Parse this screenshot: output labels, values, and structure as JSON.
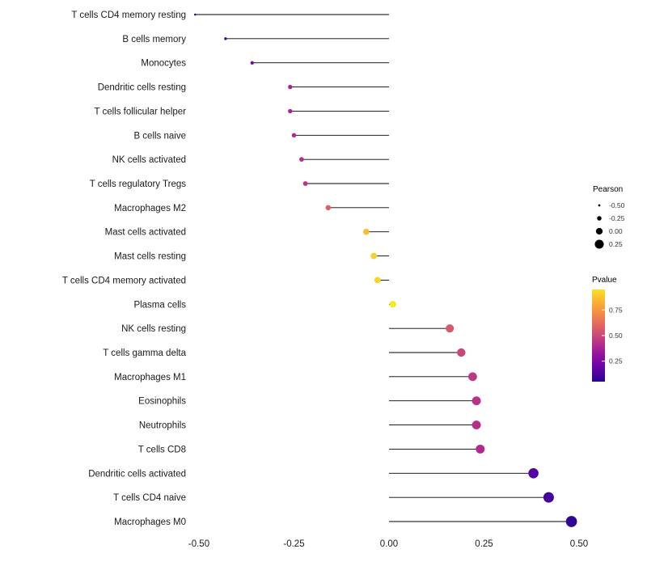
{
  "chart_data": {
    "type": "scatter",
    "variant": "lollipop",
    "title": "",
    "xlabel": "",
    "ylabel": "",
    "xlim": [
      -0.55,
      0.55
    ],
    "grid": false,
    "x_ticks": [
      {
        "value": -0.5,
        "label": "-0.50"
      },
      {
        "value": -0.25,
        "label": "-0.25"
      },
      {
        "value": 0.0,
        "label": "0.00"
      },
      {
        "value": 0.25,
        "label": "0.25"
      },
      {
        "value": 0.5,
        "label": "0.50"
      }
    ],
    "points": [
      {
        "label": "T cells CD4 memory resting",
        "pearson": -0.51,
        "pvalue": 0.08
      },
      {
        "label": "B cells memory",
        "pearson": -0.43,
        "pvalue": 0.13
      },
      {
        "label": "Monocytes",
        "pearson": -0.36,
        "pvalue": 0.22
      },
      {
        "label": "Dendritic cells resting",
        "pearson": -0.26,
        "pvalue": 0.38
      },
      {
        "label": "T cells follicular helper",
        "pearson": -0.26,
        "pvalue": 0.38
      },
      {
        "label": "B cells naive",
        "pearson": -0.25,
        "pvalue": 0.4
      },
      {
        "label": "NK cells activated",
        "pearson": -0.23,
        "pvalue": 0.42
      },
      {
        "label": "T cells regulatory  Tregs",
        "pearson": -0.22,
        "pvalue": 0.44
      },
      {
        "label": "Macrophages M2",
        "pearson": -0.16,
        "pvalue": 0.58
      },
      {
        "label": "Mast cells activated",
        "pearson": -0.06,
        "pvalue": 0.86
      },
      {
        "label": "Mast cells resting",
        "pearson": -0.04,
        "pvalue": 0.9
      },
      {
        "label": "T cells CD4 memory activated",
        "pearson": -0.03,
        "pvalue": 0.92
      },
      {
        "label": "Plasma cells",
        "pearson": 0.01,
        "pvalue": 0.97
      },
      {
        "label": "NK cells resting",
        "pearson": 0.16,
        "pvalue": 0.56
      },
      {
        "label": "T cells gamma delta",
        "pearson": 0.19,
        "pvalue": 0.5
      },
      {
        "label": "Macrophages M1",
        "pearson": 0.22,
        "pvalue": 0.45
      },
      {
        "label": "Eosinophils",
        "pearson": 0.23,
        "pvalue": 0.43
      },
      {
        "label": "Neutrophils",
        "pearson": 0.23,
        "pvalue": 0.42
      },
      {
        "label": "T cells CD8",
        "pearson": 0.24,
        "pvalue": 0.4
      },
      {
        "label": "Dendritic cells activated",
        "pearson": 0.38,
        "pvalue": 0.14
      },
      {
        "label": "T cells CD4 naive",
        "pearson": 0.42,
        "pvalue": 0.11
      },
      {
        "label": "Macrophages M0",
        "pearson": 0.48,
        "pvalue": 0.07
      }
    ],
    "legends": {
      "size": {
        "title": "Pearson",
        "ticks": [
          {
            "value": -0.5,
            "label": "-0.50"
          },
          {
            "value": -0.25,
            "label": "-0.25"
          },
          {
            "value": 0.0,
            "label": "0.00"
          },
          {
            "value": 0.25,
            "label": "0.25"
          }
        ]
      },
      "color": {
        "title": "Pvalue",
        "range": [
          0.05,
          0.95
        ],
        "ticks": [
          {
            "value": 0.75,
            "label": "0.75"
          },
          {
            "value": 0.5,
            "label": "0.50"
          },
          {
            "value": 0.25,
            "label": "0.25"
          }
        ]
      }
    },
    "colors": {
      "stem": "#000000",
      "axis_text": "#1a1a1a",
      "legend_text": "#333333",
      "size_legend_dot": "#000000",
      "plasma_stops": [
        {
          "t": 0.0,
          "hex": "#0D0887"
        },
        {
          "t": 0.14,
          "hex": "#5402A3"
        },
        {
          "t": 0.29,
          "hex": "#8B0AA5"
        },
        {
          "t": 0.43,
          "hex": "#B93289"
        },
        {
          "t": 0.57,
          "hex": "#DB5C68"
        },
        {
          "t": 0.71,
          "hex": "#F48849"
        },
        {
          "t": 0.86,
          "hex": "#FEBC2B"
        },
        {
          "t": 1.0,
          "hex": "#F0F921"
        }
      ]
    }
  }
}
